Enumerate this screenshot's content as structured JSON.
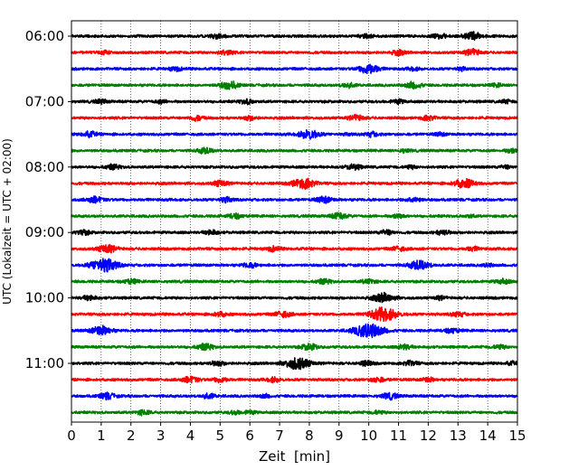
{
  "chart_data": {
    "type": "line",
    "title": "",
    "xlabel": "Zeit  [min]",
    "ylabel": "UTC (Lokalzeit = UTC + 02:00)",
    "xlim": [
      0,
      15
    ],
    "x_ticks": [
      "0",
      "1",
      "2",
      "3",
      "4",
      "5",
      "6",
      "7",
      "8",
      "9",
      "10",
      "11",
      "12",
      "13",
      "14",
      "15"
    ],
    "y_ticks": [
      "06:00",
      "07:00",
      "08:00",
      "09:00",
      "10:00",
      "11:00"
    ],
    "trace_interval_minutes": 15,
    "grid": "vertical dotted at each minute",
    "series_colors": [
      "#000000",
      "#ff0000",
      "#0000ff",
      "#008000"
    ],
    "series": [
      {
        "start": "06:00",
        "color": "#000000",
        "bursts": [
          [
            4.9,
            0.3
          ],
          [
            9.9,
            0.25
          ],
          [
            12.4,
            0.3
          ],
          [
            13.5,
            0.5
          ]
        ]
      },
      {
        "start": "06:15",
        "color": "#ff0000",
        "bursts": [
          [
            1.1,
            0.2
          ],
          [
            5.2,
            0.3
          ],
          [
            11.0,
            0.3
          ],
          [
            13.5,
            0.4
          ]
        ]
      },
      {
        "start": "06:30",
        "color": "#0000ff",
        "bursts": [
          [
            3.5,
            0.25
          ],
          [
            10.0,
            0.6
          ],
          [
            11.5,
            0.2
          ],
          [
            13.1,
            0.2
          ]
        ]
      },
      {
        "start": "06:45",
        "color": "#008000",
        "bursts": [
          [
            5.3,
            0.5
          ],
          [
            9.3,
            0.3
          ],
          [
            11.5,
            0.4
          ],
          [
            14.3,
            0.2
          ]
        ]
      },
      {
        "start": "07:00",
        "color": "#000000",
        "bursts": [
          [
            1.0,
            0.25
          ],
          [
            3.0,
            0.2
          ],
          [
            5.9,
            0.3
          ],
          [
            11.0,
            0.25
          ],
          [
            14.6,
            0.2
          ]
        ]
      },
      {
        "start": "07:15",
        "color": "#ff0000",
        "bursts": [
          [
            4.2,
            0.3
          ],
          [
            6.0,
            0.25
          ],
          [
            9.6,
            0.35
          ],
          [
            12.0,
            0.3
          ]
        ]
      },
      {
        "start": "07:30",
        "color": "#0000ff",
        "bursts": [
          [
            0.6,
            0.35
          ],
          [
            8.0,
            0.6
          ],
          [
            9.3,
            0.1
          ],
          [
            10.1,
            0.3
          ],
          [
            12.4,
            0.2
          ]
        ]
      },
      {
        "start": "07:45",
        "color": "#008000",
        "bursts": [
          [
            4.5,
            0.35
          ],
          [
            11.2,
            0.2
          ],
          [
            14.8,
            0.25
          ]
        ]
      },
      {
        "start": "08:00",
        "color": "#000000",
        "bursts": [
          [
            1.4,
            0.3
          ],
          [
            9.5,
            0.35
          ],
          [
            11.4,
            0.2
          ],
          [
            14.6,
            0.2
          ]
        ]
      },
      {
        "start": "08:15",
        "color": "#ff0000",
        "bursts": [
          [
            5.0,
            0.35
          ],
          [
            7.8,
            0.7
          ],
          [
            13.2,
            0.6
          ]
        ]
      },
      {
        "start": "08:30",
        "color": "#0000ff",
        "bursts": [
          [
            0.8,
            0.4
          ],
          [
            5.2,
            0.3
          ],
          [
            8.5,
            0.4
          ],
          [
            11.5,
            0.3
          ]
        ]
      },
      {
        "start": "08:45",
        "color": "#008000",
        "bursts": [
          [
            5.5,
            0.3
          ],
          [
            9.0,
            0.4
          ],
          [
            11.0,
            0.25
          ],
          [
            13.4,
            0.15
          ]
        ]
      },
      {
        "start": "09:00",
        "color": "#000000",
        "bursts": [
          [
            0.4,
            0.3
          ],
          [
            4.7,
            0.3
          ],
          [
            10.6,
            0.3
          ],
          [
            12.5,
            0.3
          ]
        ]
      },
      {
        "start": "09:15",
        "color": "#ff0000",
        "bursts": [
          [
            1.2,
            0.5
          ],
          [
            6.8,
            0.3
          ],
          [
            11.0,
            0.3
          ],
          [
            13.5,
            0.25
          ]
        ]
      },
      {
        "start": "09:30",
        "color": "#0000ff",
        "bursts": [
          [
            1.1,
            0.9
          ],
          [
            6.0,
            0.3
          ],
          [
            11.7,
            0.6
          ],
          [
            14.0,
            0.2
          ]
        ]
      },
      {
        "start": "09:45",
        "color": "#008000",
        "bursts": [
          [
            2.0,
            0.3
          ],
          [
            8.5,
            0.3
          ],
          [
            10.0,
            0.3
          ],
          [
            14.5,
            0.3
          ]
        ]
      },
      {
        "start": "10:00",
        "color": "#000000",
        "bursts": [
          [
            0.6,
            0.3
          ],
          [
            10.5,
            0.6
          ],
          [
            12.4,
            0.2
          ]
        ]
      },
      {
        "start": "10:15",
        "color": "#ff0000",
        "bursts": [
          [
            5.0,
            0.3
          ],
          [
            7.1,
            0.4
          ],
          [
            10.5,
            0.9
          ],
          [
            13.0,
            0.3
          ]
        ]
      },
      {
        "start": "10:30",
        "color": "#0000ff",
        "bursts": [
          [
            1.0,
            0.6
          ],
          [
            10.0,
            1.0
          ],
          [
            12.8,
            0.3
          ]
        ]
      },
      {
        "start": "10:45",
        "color": "#008000",
        "bursts": [
          [
            4.5,
            0.4
          ],
          [
            8.0,
            0.4
          ],
          [
            11.2,
            0.3
          ],
          [
            14.4,
            0.25
          ]
        ]
      },
      {
        "start": "11:00",
        "color": "#000000",
        "bursts": [
          [
            4.9,
            0.3
          ],
          [
            7.6,
            0.8
          ],
          [
            9.9,
            0.3
          ],
          [
            11.4,
            0.3
          ],
          [
            14.8,
            0.2
          ]
        ]
      },
      {
        "start": "11:15",
        "color": "#ff0000",
        "bursts": [
          [
            4.0,
            0.4
          ],
          [
            5.0,
            0.3
          ],
          [
            6.8,
            0.3
          ],
          [
            10.3,
            0.3
          ],
          [
            12.0,
            0.25
          ]
        ]
      },
      {
        "start": "11:30",
        "color": "#0000ff",
        "bursts": [
          [
            1.2,
            0.4
          ],
          [
            4.6,
            0.3
          ],
          [
            6.5,
            0.2
          ],
          [
            10.7,
            0.4
          ]
        ]
      },
      {
        "start": "11:45",
        "color": "#008000",
        "bursts": [
          [
            2.4,
            0.3
          ],
          [
            5.5,
            0.2
          ],
          [
            6.0,
            0.2
          ],
          [
            10.3,
            0.2
          ]
        ]
      }
    ]
  }
}
